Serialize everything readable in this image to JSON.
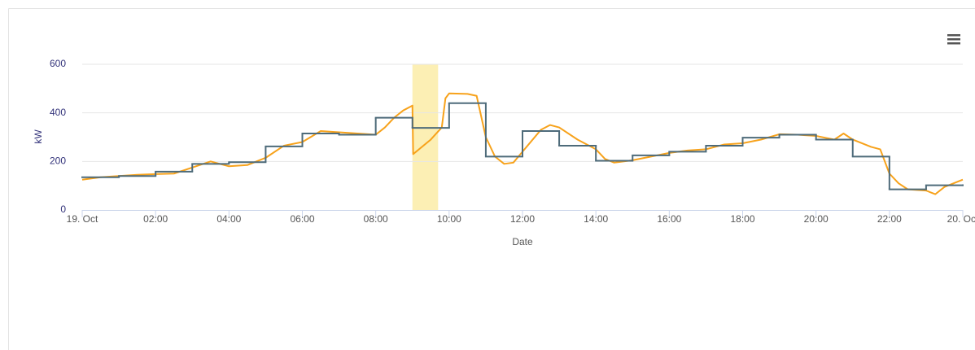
{
  "chart_data": {
    "type": "line",
    "x_title": "Date",
    "y_title": "kW",
    "xlim": [
      0,
      24
    ],
    "xticks": [
      {
        "value": 0,
        "label": "19. Oct"
      },
      {
        "value": 2,
        "label": "02:00"
      },
      {
        "value": 4,
        "label": "04:00"
      },
      {
        "value": 6,
        "label": "06:00"
      },
      {
        "value": 8,
        "label": "08:00"
      },
      {
        "value": 10,
        "label": "10:00"
      },
      {
        "value": 12,
        "label": "12:00"
      },
      {
        "value": 14,
        "label": "14:00"
      },
      {
        "value": 16,
        "label": "16:00"
      },
      {
        "value": 18,
        "label": "18:00"
      },
      {
        "value": 20,
        "label": "20:00"
      },
      {
        "value": 22,
        "label": "22:00"
      },
      {
        "value": 24,
        "label": "20. Oct"
      }
    ],
    "ylim": [
      0,
      600
    ],
    "yticks": [
      0,
      200,
      400,
      600
    ],
    "grid": true,
    "plot_bands": [
      {
        "from": 9,
        "to": 9.7,
        "color": "#fcefb4"
      }
    ],
    "series": [
      {
        "color": "#f7a21b",
        "step": false,
        "x": [
          0,
          0.5,
          1,
          1.5,
          2,
          2.5,
          3,
          3.5,
          4,
          4.5,
          5,
          5.5,
          6,
          6.5,
          7,
          7.5,
          8,
          8.25,
          8.5,
          8.75,
          9,
          9.02,
          9.5,
          9.8,
          9.9,
          10,
          10.5,
          10.75,
          11,
          11.25,
          11.5,
          11.75,
          12,
          12.5,
          12.75,
          13,
          13.5,
          14,
          14.25,
          14.5,
          15,
          15.5,
          16,
          16.5,
          17,
          17.5,
          18,
          18.5,
          19,
          19.5,
          20,
          20.5,
          20.75,
          21,
          21.5,
          21.75,
          22,
          22.25,
          22.5,
          23,
          23.25,
          23.5,
          24
        ],
        "values": [
          125,
          135,
          140,
          145,
          148,
          150,
          175,
          200,
          180,
          185,
          215,
          265,
          280,
          325,
          320,
          315,
          310,
          340,
          380,
          410,
          430,
          230,
          290,
          340,
          460,
          480,
          478,
          470,
          300,
          220,
          190,
          195,
          240,
          330,
          350,
          340,
          290,
          250,
          210,
          195,
          205,
          220,
          235,
          245,
          250,
          270,
          275,
          290,
          312,
          310,
          305,
          290,
          315,
          290,
          260,
          250,
          150,
          110,
          85,
          80,
          65,
          95,
          125
        ]
      },
      {
        "color": "#4e6b7a",
        "step": true,
        "x": [
          0,
          1,
          2,
          3,
          4,
          5,
          6,
          7,
          8,
          9,
          10,
          11,
          12,
          13,
          14,
          15,
          16,
          17,
          18,
          19,
          20,
          21,
          22,
          23,
          24
        ],
        "values": [
          135,
          140,
          158,
          190,
          197,
          262,
          315,
          310,
          380,
          338,
          440,
          220,
          325,
          265,
          203,
          225,
          240,
          265,
          298,
          310,
          290,
          220,
          85,
          102,
          102
        ]
      }
    ]
  }
}
